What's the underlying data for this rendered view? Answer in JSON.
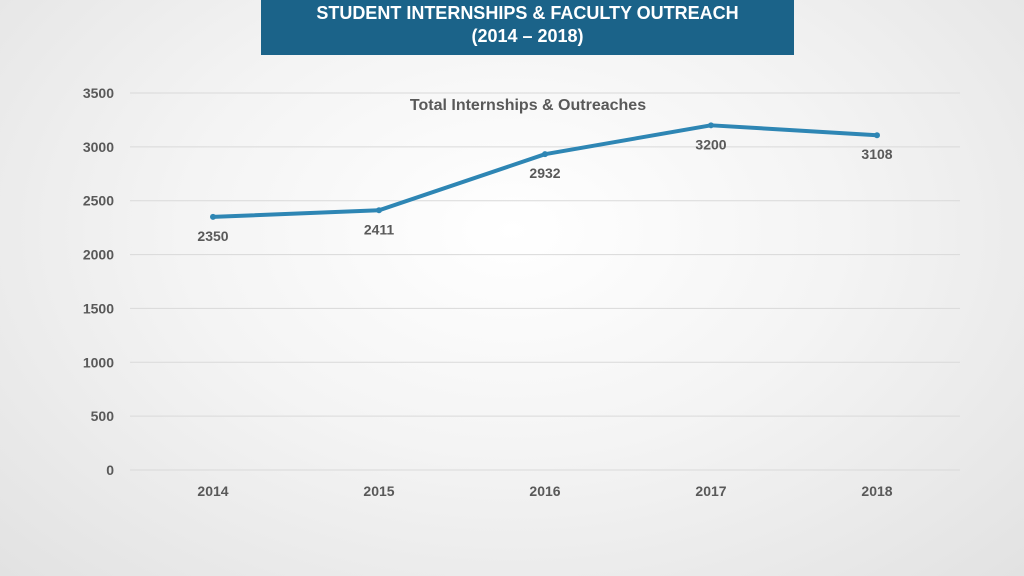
{
  "slide": {
    "title_line1": "STUDENT INTERNSHIPS & FACULTY OUTREACH",
    "title_line2": "(2014 – 2018)"
  },
  "colors": {
    "banner": "#1b6389",
    "line": "#2e86b4",
    "grid": "#d9d9d9",
    "text": "#595959"
  },
  "chart_data": {
    "type": "line",
    "title": "Total Internships & Outreaches",
    "xlabel": "",
    "ylabel": "",
    "categories": [
      "2014",
      "2015",
      "2016",
      "2017",
      "2018"
    ],
    "values": [
      2350,
      2411,
      2932,
      3200,
      3108
    ],
    "ylim": [
      0,
      3500
    ],
    "yticks": [
      0,
      500,
      1000,
      1500,
      2000,
      2500,
      3000,
      3500
    ],
    "grid": true,
    "legend": "none",
    "data_labels": true
  }
}
